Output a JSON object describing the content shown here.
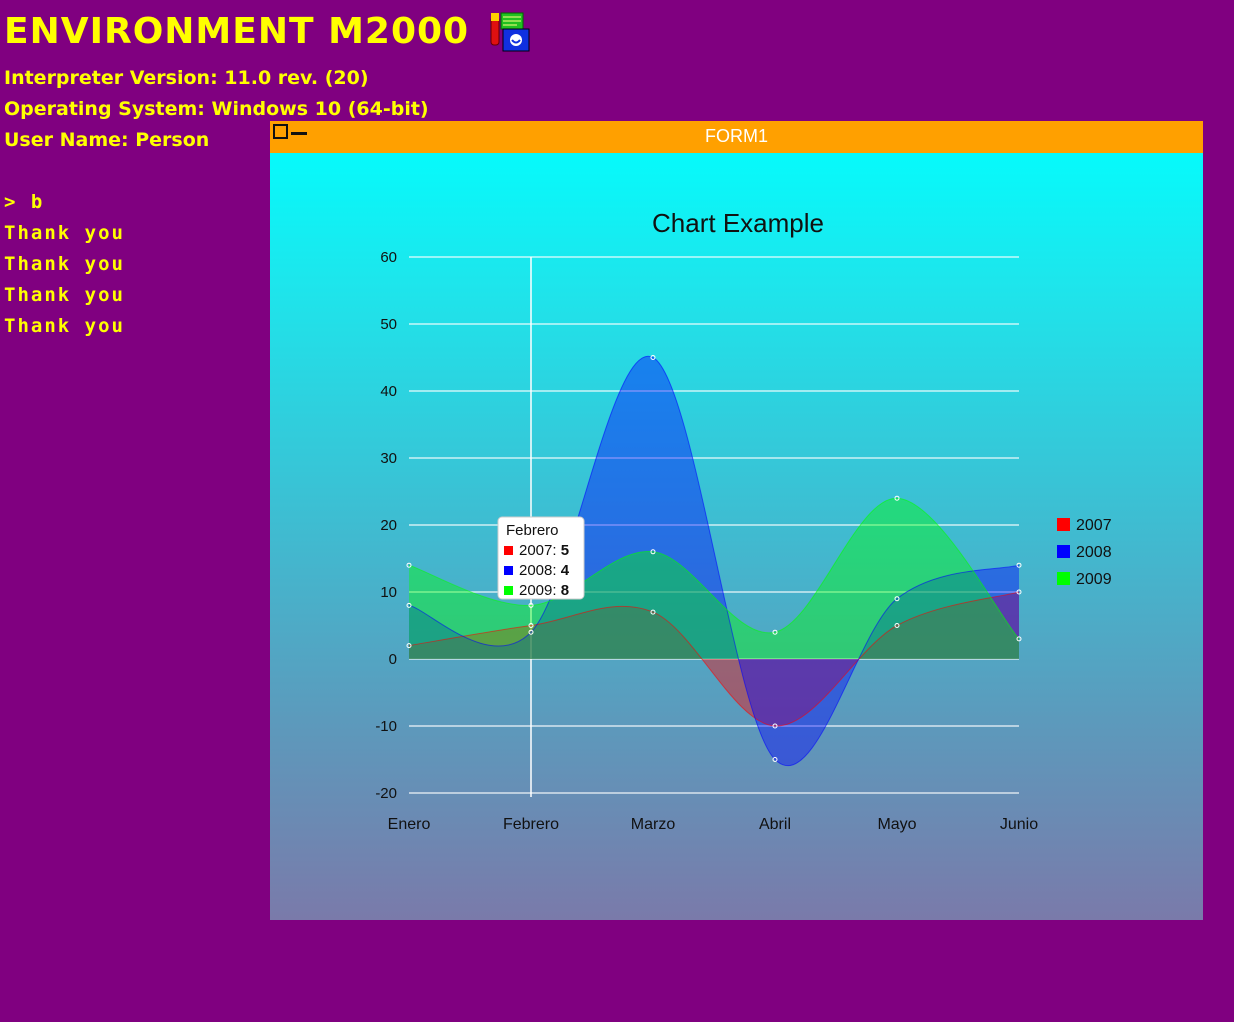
{
  "console": {
    "title": "ENVIRONMENT M2000",
    "interpreter": "Interpreter Version: 11.0 rev. (20)",
    "os": "Operating System: Windows 10 (64-bit)",
    "user": "User Name: Person",
    "command": "> b",
    "output": [
      "Thank you",
      "Thank you",
      "Thank you",
      "Thank you"
    ]
  },
  "window": {
    "title": "FORM1"
  },
  "colors": {
    "background": "#800080",
    "text": "#ffff00",
    "titlebar": "#ffa000"
  },
  "chart_data": {
    "type": "area",
    "title": "Chart Example",
    "categories": [
      "Enero",
      "Febrero",
      "Marzo",
      "Abril",
      "Mayo",
      "Junio"
    ],
    "ylim": [
      -20,
      60
    ],
    "yticks": [
      60,
      50,
      40,
      30,
      20,
      10,
      0,
      -10,
      -20
    ],
    "grid": true,
    "legend_position": "right",
    "series": [
      {
        "name": "2007",
        "values": [
          2,
          5,
          7,
          -10,
          5,
          10
        ],
        "color": "#ff0000"
      },
      {
        "name": "2008",
        "values": [
          8,
          4,
          45,
          -15,
          9,
          14
        ],
        "color": "#0000ff"
      },
      {
        "name": "2009",
        "values": [
          14,
          8,
          16,
          4,
          24,
          3
        ],
        "color": "#00ff00"
      }
    ],
    "tooltip": {
      "category": "Febrero",
      "items": [
        {
          "name": "2007",
          "value": "5"
        },
        {
          "name": "2008",
          "value": "4"
        },
        {
          "name": "2009",
          "value": "8"
        }
      ]
    }
  }
}
